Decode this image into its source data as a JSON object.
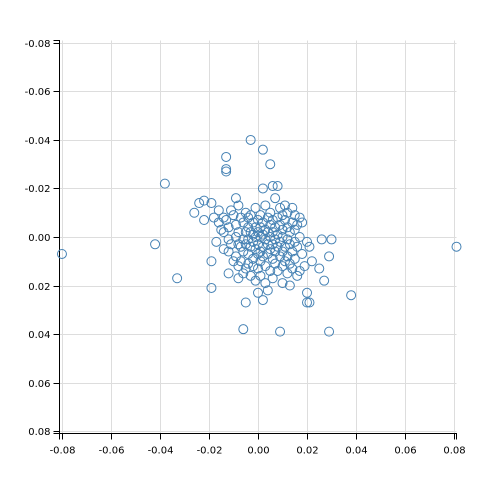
{
  "chart_data": {
    "type": "scatter",
    "title": "",
    "xlabel": "",
    "ylabel": "",
    "xlim": [
      -0.081,
      0.081
    ],
    "ylim": [
      -0.081,
      0.081
    ],
    "y_inverted": true,
    "grid": true,
    "x_ticks": [
      -0.08,
      -0.06,
      -0.04,
      -0.02,
      0.0,
      0.02,
      0.04,
      0.06,
      0.08
    ],
    "x_tick_labels": [
      "-0.08",
      "-0.06",
      "-0.04",
      "-0.02",
      "0.00",
      "0.02",
      "0.04",
      "0.06",
      "0.08"
    ],
    "y_ticks": [
      -0.08,
      -0.06,
      -0.04,
      -0.02,
      0.0,
      0.02,
      0.04,
      0.06,
      0.08
    ],
    "y_tick_labels": [
      "-0.08",
      "-0.06",
      "-0.04",
      "-0.02",
      "0.00",
      "0.02",
      "0.04",
      "0.06",
      "0.08"
    ],
    "colors": {
      "point": "#4682b4",
      "grid": "#dddddd",
      "axis": "#000000"
    },
    "series": [
      {
        "points": [
          [
            -0.08,
            0.007
          ],
          [
            -0.042,
            0.003
          ],
          [
            -0.038,
            -0.022
          ],
          [
            -0.033,
            0.017
          ],
          [
            -0.026,
            -0.01
          ],
          [
            -0.024,
            -0.014
          ],
          [
            -0.022,
            -0.015
          ],
          [
            -0.022,
            -0.007
          ],
          [
            -0.019,
            -0.014
          ],
          [
            -0.019,
            0.01
          ],
          [
            -0.019,
            0.021
          ],
          [
            -0.018,
            -0.008
          ],
          [
            -0.017,
            0.002
          ],
          [
            -0.016,
            -0.011
          ],
          [
            -0.016,
            -0.006
          ],
          [
            -0.015,
            -0.003
          ],
          [
            -0.014,
            -0.008
          ],
          [
            -0.014,
            -0.002
          ],
          [
            -0.014,
            0.005
          ],
          [
            -0.013,
            -0.033
          ],
          [
            -0.013,
            -0.028
          ],
          [
            -0.013,
            -0.027
          ],
          [
            -0.013,
            -0.007
          ],
          [
            -0.012,
            -0.004
          ],
          [
            -0.012,
            0.001
          ],
          [
            -0.012,
            0.006
          ],
          [
            -0.012,
            0.015
          ],
          [
            -0.011,
            -0.011
          ],
          [
            -0.011,
            0.003
          ],
          [
            -0.01,
            -0.009
          ],
          [
            -0.01,
            0.01
          ],
          [
            -0.009,
            -0.016
          ],
          [
            -0.009,
            -0.005
          ],
          [
            -0.009,
            0.0
          ],
          [
            -0.009,
            0.008
          ],
          [
            -0.008,
            -0.013
          ],
          [
            -0.008,
            -0.002
          ],
          [
            -0.008,
            0.003
          ],
          [
            -0.008,
            0.012
          ],
          [
            -0.008,
            0.017
          ],
          [
            -0.007,
            -0.008
          ],
          [
            -0.007,
            0.004
          ],
          [
            -0.007,
            0.01
          ],
          [
            -0.006,
            -0.006
          ],
          [
            -0.006,
            0.001
          ],
          [
            -0.006,
            0.006
          ],
          [
            -0.006,
            0.015
          ],
          [
            -0.005,
            -0.01
          ],
          [
            -0.005,
            -0.002
          ],
          [
            -0.005,
            0.003
          ],
          [
            -0.005,
            0.013
          ],
          [
            -0.005,
            0.027
          ],
          [
            -0.004,
            -0.008
          ],
          [
            -0.004,
            -0.004
          ],
          [
            -0.004,
            0.001
          ],
          [
            -0.004,
            0.007
          ],
          [
            -0.004,
            0.011
          ],
          [
            -0.006,
            0.038
          ],
          [
            -0.003,
            -0.04
          ],
          [
            -0.003,
            -0.009
          ],
          [
            -0.003,
            -0.002
          ],
          [
            -0.003,
            0.004
          ],
          [
            -0.003,
            0.016
          ],
          [
            -0.002,
            -0.006
          ],
          [
            -0.002,
            -0.001
          ],
          [
            -0.002,
            0.002
          ],
          [
            -0.002,
            0.009
          ],
          [
            -0.002,
            0.012
          ],
          [
            -0.001,
            -0.012
          ],
          [
            -0.001,
            -0.004
          ],
          [
            -0.001,
            0.0
          ],
          [
            -0.001,
            0.005
          ],
          [
            -0.001,
            0.018
          ],
          [
            0.0,
            -0.007
          ],
          [
            0.0,
            -0.002
          ],
          [
            0.0,
            0.003
          ],
          [
            0.0,
            0.007
          ],
          [
            0.0,
            0.013
          ],
          [
            0.0,
            0.023
          ],
          [
            0.001,
            -0.009
          ],
          [
            0.001,
            -0.004
          ],
          [
            0.001,
            0.0
          ],
          [
            0.001,
            0.006
          ],
          [
            0.001,
            0.01
          ],
          [
            0.001,
            0.016
          ],
          [
            0.002,
            -0.036
          ],
          [
            0.002,
            -0.02
          ],
          [
            0.002,
            -0.006
          ],
          [
            0.002,
            -0.001
          ],
          [
            0.002,
            0.004
          ],
          [
            0.002,
            0.008
          ],
          [
            0.002,
            0.026
          ],
          [
            0.003,
            -0.013
          ],
          [
            0.003,
            -0.003
          ],
          [
            0.003,
            0.001
          ],
          [
            0.003,
            0.012
          ],
          [
            0.003,
            0.019
          ],
          [
            0.004,
            -0.008
          ],
          [
            0.004,
            -0.002
          ],
          [
            0.004,
            0.003
          ],
          [
            0.004,
            0.007
          ],
          [
            0.004,
            0.022
          ],
          [
            0.005,
            -0.03
          ],
          [
            0.005,
            -0.01
          ],
          [
            0.005,
            -0.005
          ],
          [
            0.005,
            0.0
          ],
          [
            0.005,
            0.005
          ],
          [
            0.005,
            0.014
          ],
          [
            0.006,
            -0.021
          ],
          [
            0.006,
            -0.007
          ],
          [
            0.006,
            -0.002
          ],
          [
            0.006,
            0.003
          ],
          [
            0.006,
            0.009
          ],
          [
            0.006,
            0.017
          ],
          [
            0.007,
            -0.016
          ],
          [
            0.007,
            -0.004
          ],
          [
            0.007,
            0.001
          ],
          [
            0.007,
            0.006
          ],
          [
            0.007,
            0.011
          ],
          [
            0.008,
            -0.021
          ],
          [
            0.008,
            -0.008
          ],
          [
            0.008,
            -0.001
          ],
          [
            0.008,
            0.004
          ],
          [
            0.008,
            0.014
          ],
          [
            0.009,
            -0.012
          ],
          [
            0.009,
            -0.005
          ],
          [
            0.009,
            0.002
          ],
          [
            0.009,
            0.008
          ],
          [
            0.009,
            0.039
          ],
          [
            0.01,
            -0.009
          ],
          [
            0.01,
            -0.003
          ],
          [
            0.01,
            0.0
          ],
          [
            0.01,
            0.006
          ],
          [
            0.01,
            0.012
          ],
          [
            0.01,
            0.019
          ],
          [
            0.011,
            -0.013
          ],
          [
            0.011,
            -0.007
          ],
          [
            0.011,
            0.004
          ],
          [
            0.011,
            0.01
          ],
          [
            0.012,
            -0.01
          ],
          [
            0.012,
            -0.004
          ],
          [
            0.012,
            0.001
          ],
          [
            0.012,
            0.008
          ],
          [
            0.012,
            0.015
          ],
          [
            0.013,
            -0.002
          ],
          [
            0.013,
            0.003
          ],
          [
            0.013,
            0.011
          ],
          [
            0.013,
            0.02
          ],
          [
            0.014,
            -0.012
          ],
          [
            0.014,
            -0.006
          ],
          [
            0.014,
            0.006
          ],
          [
            0.014,
            0.013
          ],
          [
            0.015,
            -0.009
          ],
          [
            0.015,
            -0.003
          ],
          [
            0.015,
            0.002
          ],
          [
            0.015,
            0.009
          ],
          [
            0.016,
            -0.005
          ],
          [
            0.016,
            0.004
          ],
          [
            0.016,
            0.016
          ],
          [
            0.017,
            -0.008
          ],
          [
            0.017,
            0.0
          ],
          [
            0.017,
            0.014
          ],
          [
            0.018,
            -0.006
          ],
          [
            0.018,
            0.007
          ],
          [
            0.019,
            0.012
          ],
          [
            0.02,
            0.002
          ],
          [
            0.02,
            0.023
          ],
          [
            0.02,
            0.027
          ],
          [
            0.021,
            0.027
          ],
          [
            0.021,
            0.004
          ],
          [
            0.022,
            0.01
          ],
          [
            0.025,
            0.013
          ],
          [
            0.026,
            0.001
          ],
          [
            0.027,
            0.018
          ],
          [
            0.029,
            0.008
          ],
          [
            0.03,
            0.001
          ],
          [
            0.029,
            0.039
          ],
          [
            0.038,
            0.024
          ],
          [
            0.081,
            0.004
          ]
        ]
      }
    ]
  }
}
